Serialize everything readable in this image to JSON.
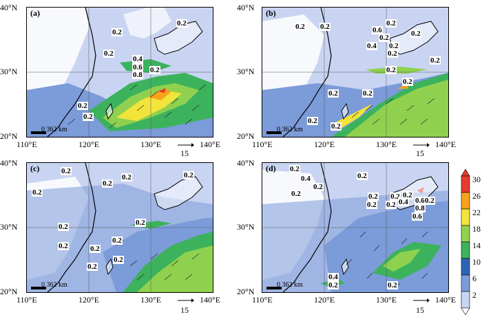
{
  "figure": {
    "colorbar": {
      "ticks": [
        "30",
        "26",
        "22",
        "18",
        "14",
        "10",
        "6",
        "2"
      ],
      "colors": [
        "#e63b2e",
        "#f7a21b",
        "#f2e43b",
        "#8fd14f",
        "#3cb25d",
        "#2e64b8",
        "#7b9bd9",
        "#c9d4f2"
      ]
    },
    "lat_labels": [
      "40°N",
      "30°N",
      "20°N"
    ],
    "lon_labels": [
      "110°E",
      "120°E",
      "130°E",
      "140°E"
    ],
    "vector_reference": "15",
    "scale_label": "0 362 km",
    "panels": [
      {
        "tag": "(a)",
        "contour_labels": [
          "0.2",
          "0.2",
          "0.2",
          "0.4",
          "0.6",
          "0.8",
          "0.2",
          "0.2",
          "0.2"
        ]
      },
      {
        "tag": "(b)",
        "contour_labels": [
          "0.2",
          "0.2",
          "0.2",
          "0.6",
          "0.2",
          "0.2",
          "0.4",
          "0.2",
          "0.2",
          "0.2",
          "0.2",
          "0.2",
          "0.2",
          "0.2",
          "0.2",
          "0.2"
        ]
      },
      {
        "tag": "(c)",
        "contour_labels": [
          "0.2",
          "0.2",
          "0.2",
          "0.2",
          "0.2",
          "0.2",
          "0.2",
          "0.2",
          "0.2",
          "0.2",
          "0.2",
          "0.2"
        ]
      },
      {
        "tag": "(d)",
        "contour_labels": [
          "0.2",
          "0.4",
          "0.2",
          "0.2",
          "0.2",
          "0.2",
          "0.2",
          "0.2",
          "0.4",
          "0.6",
          "0.8",
          "0.6",
          "0.2",
          "0.2",
          "0.2",
          "0.4",
          "0.2",
          "0.2"
        ]
      }
    ]
  },
  "colors": {
    "background": "#ffffff",
    "frame": "#000000"
  }
}
